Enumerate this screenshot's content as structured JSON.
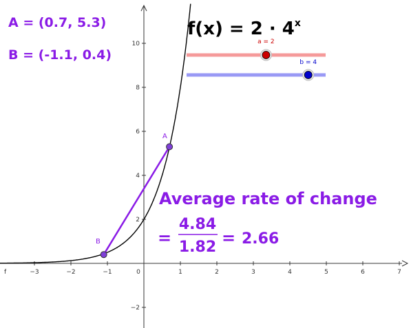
{
  "function_label": {
    "prefix": "f(x) = 2 · 4",
    "exponent": "x"
  },
  "points": {
    "A": {
      "name": "A",
      "x": 0.7,
      "y": 5.3,
      "text": "A = (0.7, 5.3)"
    },
    "B": {
      "name": "B",
      "x": -1.1,
      "y": 0.4,
      "text": "B = (-1.1, 0.4)"
    }
  },
  "sliders": {
    "a": {
      "label": "a = 2",
      "value": 2,
      "min": -2,
      "max": 5,
      "color": "#cc0000",
      "track_color": "#f59a9a"
    },
    "b": {
      "label": "b = 4",
      "value": 4,
      "min": -3,
      "max": 5,
      "color": "#0000cc",
      "track_color": "#9999f5"
    }
  },
  "aroc": {
    "title": "Average rate of change",
    "eq1": "=",
    "numerator": "4.84",
    "denominator": "1.82",
    "eq2": "=",
    "result": "2.66"
  },
  "axes": {
    "curve_label": "f",
    "x_ticks": [
      "−3",
      "−2",
      "−1",
      "0",
      "1",
      "2",
      "3",
      "4",
      "5",
      "6",
      "7"
    ],
    "y_ticks": [
      "−2",
      "2",
      "4",
      "6",
      "8",
      "10"
    ]
  },
  "colors": {
    "accent": "#8a1be6",
    "point_fill": "#7f3fd8",
    "curve": "#000000"
  }
}
